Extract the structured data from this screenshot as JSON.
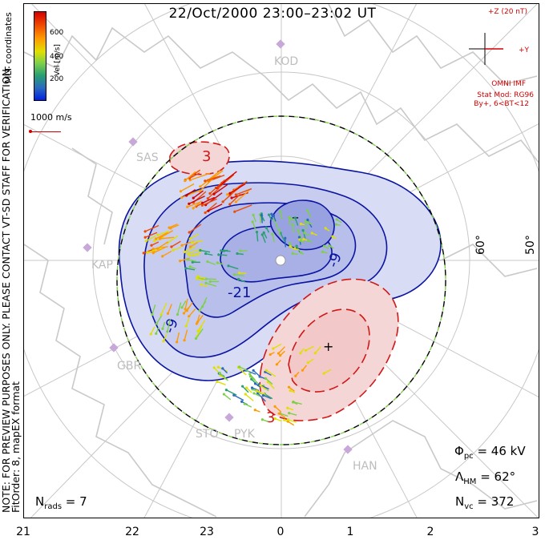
{
  "title": "22/Oct/2000 23:00–23:02 UT",
  "side_note": "NOTE: FOR PREVIEW PURPOSES ONLY. PLEASE CONTACT VT-SD STAFF FOR VERIFICATION.",
  "side_note_2": "FitOrder: 8,  mapEX format",
  "mlt_coordinates": "MLT coordinates",
  "colorbar": {
    "label": "Vel [m/s]",
    "ticks": [
      "600",
      "400",
      "200"
    ]
  },
  "vector_scale": "1000 m/s",
  "imf": {
    "z_label": "+Z (20 nT)",
    "y_label": "+Y",
    "source": "OMNI IMF",
    "model": "Stat Mod: RG96",
    "condition": "By+, 6<BT<12"
  },
  "stats": {
    "phi_pc": "46 kV",
    "lambda_hm": "62°",
    "n_vc": "372",
    "n_rads": "7"
  },
  "stat_labels": {
    "phi": "Φ",
    "phi_sub": "pc",
    "lambda": "Λ",
    "lambda_sub": "HM",
    "n": "N",
    "n_vc_sub": "vc",
    "n_rads_sub": "rads"
  },
  "x_axis_ticks": [
    "21",
    "22",
    "23",
    "0",
    "1",
    "2",
    "3"
  ],
  "latitude_labels": [
    "60°",
    "50°"
  ],
  "stations": [
    "KOD",
    "SAS",
    "KAP",
    "GBR",
    "STO",
    "PYK",
    "HAN"
  ],
  "contour_labels": {
    "neg_small": "-9",
    "neg_large": "-21",
    "neg_min": "–",
    "pos_small": "3",
    "pos_max": "+"
  },
  "colors": {
    "negative_contour": "#0a14a0",
    "positive_contour": "#d01818",
    "negative_fill": "#d8dcf4",
    "positive_fill": "#f5d6d6",
    "heppner_maynard": "#7fd04a",
    "imf_red": "#d10000",
    "grid_gray": "#b0b0b0"
  }
}
